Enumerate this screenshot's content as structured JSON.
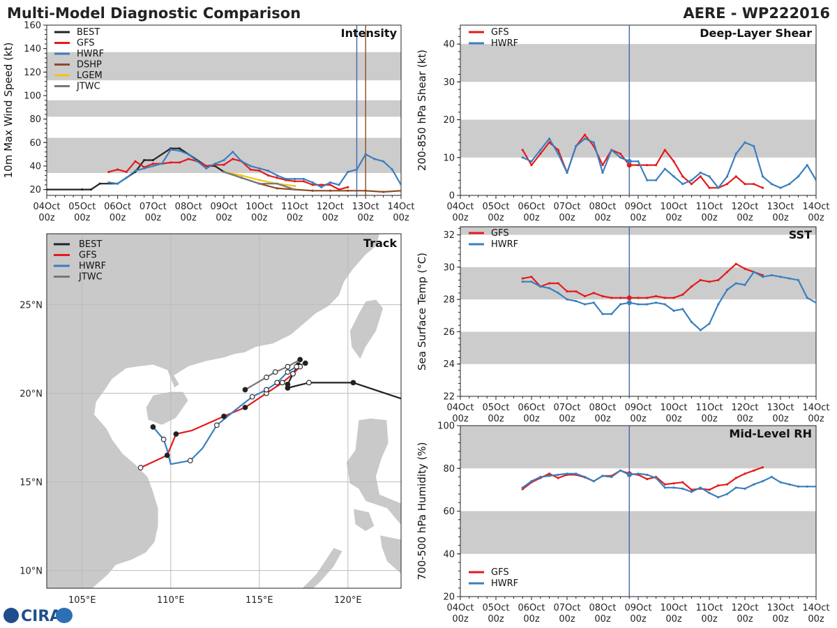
{
  "header": {
    "title": "Multi-Model Diagnostic Comparison",
    "storm": "AERE - WP222016"
  },
  "logo": {
    "text": "CIRA"
  },
  "colors": {
    "BEST": "#222222",
    "GFS": "#e31a1c",
    "HWRF": "#3a7fbf",
    "DSHP": "#8c4a23",
    "LGEM": "#f0c419",
    "JTWC": "#777777",
    "band": "#cccccc",
    "vline": "#4466aa",
    "vline2": "#8c4a23",
    "land": "#c9c9c9",
    "grid": "#bbbbbb"
  },
  "chart_data": [
    {
      "id": "intensity",
      "type": "line",
      "title": "Intensity",
      "ylabel": "10m Max Wind Speed (kt)",
      "x_ticks": [
        "04Oct",
        "05Oct",
        "06Oct",
        "07Oct",
        "08Oct",
        "09Oct",
        "10Oct",
        "11Oct",
        "12Oct",
        "13Oct",
        "14Oct"
      ],
      "x_ticks_sub": [
        "00z",
        "00z",
        "00z",
        "00z",
        "00z",
        "00z",
        "00z",
        "00z",
        "00z",
        "00z",
        "00z"
      ],
      "xlim": [
        0,
        10
      ],
      "ylim": [
        15,
        160
      ],
      "yticks": [
        20,
        40,
        60,
        80,
        100,
        120,
        140,
        160
      ],
      "bands": [
        [
          34,
          64
        ],
        [
          82,
          96
        ],
        [
          113,
          137
        ]
      ],
      "vlines": [
        {
          "x": 8.75,
          "color": "vline"
        },
        {
          "x": 9.0,
          "color": "vline2"
        }
      ],
      "legend": [
        "BEST",
        "GFS",
        "HWRF",
        "DSHP",
        "LGEM",
        "JTWC"
      ],
      "series": [
        {
          "name": "BEST",
          "x": [
            0,
            1,
            1.25,
            1.5,
            2,
            2.5,
            2.75,
            3,
            3.5,
            3.75,
            4,
            4.5,
            4.75,
            5
          ],
          "y": [
            20,
            20,
            20,
            25,
            25,
            35,
            45,
            45,
            55,
            55,
            50,
            40,
            40,
            35
          ]
        },
        {
          "name": "GFS",
          "x": [
            1.75,
            2,
            2.25,
            2.5,
            2.75,
            3,
            3.25,
            3.5,
            3.75,
            4,
            4.25,
            4.5,
            4.75,
            5,
            5.25,
            5.5,
            5.75,
            6,
            6.25,
            6.5,
            6.75,
            7,
            7.25,
            7.5,
            7.75,
            8,
            8.25,
            8.5
          ],
          "y": [
            35,
            37,
            35,
            44,
            39,
            42,
            42,
            43,
            43,
            46,
            44,
            40,
            41,
            41,
            46,
            44,
            37,
            36,
            32,
            30,
            28,
            27,
            27,
            24,
            24,
            24,
            20,
            22
          ]
        },
        {
          "name": "HWRF",
          "x": [
            1.75,
            2,
            2.25,
            2.5,
            2.75,
            3,
            3.25,
            3.5,
            3.75,
            4,
            4.25,
            4.5,
            4.75,
            5,
            5.25,
            5.5,
            5.75,
            6,
            6.25,
            6.5,
            6.75,
            7,
            7.25,
            7.5,
            7.75,
            8,
            8.25,
            8.5,
            8.75,
            9,
            9.25,
            9.5,
            9.75,
            10
          ],
          "y": [
            26,
            25,
            30,
            36,
            38,
            40,
            42,
            54,
            53,
            50,
            44,
            38,
            42,
            45,
            52,
            44,
            40,
            38,
            36,
            32,
            29,
            29,
            29,
            26,
            22,
            26,
            24,
            35,
            37,
            50,
            46,
            44,
            37,
            24
          ]
        },
        {
          "name": "DSHP",
          "x": [
            5,
            5.5,
            6,
            6.5,
            7,
            7.5,
            8,
            8.5,
            9,
            9.5,
            10
          ],
          "y": [
            35,
            30,
            25,
            21,
            20,
            19,
            19,
            19,
            19,
            18,
            19
          ]
        },
        {
          "name": "LGEM",
          "x": [
            5,
            5.5,
            6,
            6.5,
            7
          ],
          "y": [
            35,
            32,
            28,
            25,
            23
          ]
        },
        {
          "name": "JTWC",
          "x": [
            5,
            5.5,
            6,
            6.5,
            7
          ],
          "y": [
            35,
            30,
            25,
            25,
            20
          ]
        }
      ]
    },
    {
      "id": "shear",
      "type": "line",
      "title": "Deep-Layer Shear",
      "ylabel": "200-850 hPa Shear (kt)",
      "x_ticks": [
        "04Oct",
        "05Oct",
        "06Oct",
        "07Oct",
        "08Oct",
        "09Oct",
        "10Oct",
        "11Oct",
        "12Oct",
        "13Oct",
        "14Oct"
      ],
      "x_ticks_sub": [
        "00z",
        "00z",
        "00z",
        "00z",
        "00z",
        "00z",
        "00z",
        "00z",
        "00z",
        "00z",
        "00z"
      ],
      "xlim": [
        0,
        10
      ],
      "ylim": [
        0,
        45
      ],
      "yticks": [
        0,
        10,
        20,
        30,
        40
      ],
      "bands": [
        [
          10,
          20
        ],
        [
          30,
          40
        ]
      ],
      "vlines": [
        {
          "x": 4.75,
          "color": "vline"
        }
      ],
      "legend": [
        "GFS",
        "HWRF"
      ],
      "series": [
        {
          "name": "GFS",
          "x": [
            1.75,
            2,
            2.25,
            2.5,
            2.75,
            3,
            3.25,
            3.5,
            3.75,
            4,
            4.25,
            4.5,
            4.75,
            5,
            5.25,
            5.5,
            5.75,
            6,
            6.25,
            6.5,
            6.75,
            7,
            7.25,
            7.5,
            7.75,
            8,
            8.25,
            8.5
          ],
          "y": [
            12,
            8,
            11,
            14,
            12,
            6,
            13,
            16,
            13,
            8,
            12,
            11,
            8,
            8,
            8,
            8,
            12,
            9,
            5,
            3,
            5,
            2,
            2,
            3,
            5,
            3,
            3,
            2
          ]
        },
        {
          "name": "HWRF",
          "x": [
            1.75,
            2,
            2.25,
            2.5,
            2.75,
            3,
            3.25,
            3.5,
            3.75,
            4,
            4.25,
            4.5,
            4.75,
            5,
            5.25,
            5.5,
            5.75,
            6,
            6.25,
            6.5,
            6.75,
            7,
            7.25,
            7.5,
            7.75,
            8,
            8.25,
            8.5,
            8.75,
            9,
            9.25,
            9.5,
            9.75,
            10
          ],
          "y": [
            10,
            9,
            12,
            15,
            11,
            6,
            13,
            15,
            14,
            6,
            12,
            10,
            9,
            9,
            4,
            4,
            7,
            5,
            3,
            4,
            6,
            5,
            2,
            5,
            11,
            14,
            13,
            5,
            3,
            2,
            3,
            5,
            8,
            4
          ]
        }
      ]
    },
    {
      "id": "sst",
      "type": "line",
      "title": "SST",
      "ylabel": "Sea Surface Temp (°C)",
      "x_ticks": [
        "04Oct",
        "05Oct",
        "06Oct",
        "07Oct",
        "08Oct",
        "09Oct",
        "10Oct",
        "11Oct",
        "12Oct",
        "13Oct",
        "14Oct"
      ],
      "x_ticks_sub": [
        "00z",
        "00z",
        "00z",
        "00z",
        "00z",
        "00z",
        "00z",
        "00z",
        "00z",
        "00z",
        "00z"
      ],
      "xlim": [
        0,
        10
      ],
      "ylim": [
        22,
        32.5
      ],
      "yticks": [
        22,
        24,
        26,
        28,
        30,
        32
      ],
      "bands": [
        [
          24,
          26
        ],
        [
          28,
          30
        ],
        [
          32,
          32.5
        ]
      ],
      "vlines": [
        {
          "x": 4.75,
          "color": "vline"
        }
      ],
      "legend": [
        "GFS",
        "HWRF"
      ],
      "series": [
        {
          "name": "GFS",
          "x": [
            1.75,
            2,
            2.25,
            2.5,
            2.75,
            3,
            3.25,
            3.5,
            3.75,
            4,
            4.25,
            4.5,
            4.75,
            5,
            5.25,
            5.5,
            5.75,
            6,
            6.25,
            6.5,
            6.75,
            7,
            7.25,
            7.5,
            7.75,
            8,
            8.25,
            8.5
          ],
          "y": [
            29.3,
            29.4,
            28.8,
            29.0,
            29.0,
            28.5,
            28.5,
            28.2,
            28.4,
            28.2,
            28.1,
            28.1,
            28.1,
            28.1,
            28.1,
            28.2,
            28.1,
            28.1,
            28.3,
            28.8,
            29.2,
            29.1,
            29.2,
            29.7,
            30.2,
            29.9,
            29.7,
            29.5
          ]
        },
        {
          "name": "HWRF",
          "x": [
            1.75,
            2,
            2.25,
            2.5,
            2.75,
            3,
            3.25,
            3.5,
            3.75,
            4,
            4.25,
            4.5,
            4.75,
            5,
            5.25,
            5.5,
            5.75,
            6,
            6.25,
            6.5,
            6.75,
            7,
            7.25,
            7.5,
            7.75,
            8,
            8.25,
            8.5,
            8.75,
            9,
            9.25,
            9.5,
            9.75,
            10
          ],
          "y": [
            29.1,
            29.1,
            28.8,
            28.7,
            28.4,
            28.0,
            27.9,
            27.7,
            27.8,
            27.1,
            27.1,
            27.7,
            27.8,
            27.7,
            27.7,
            27.8,
            27.7,
            27.3,
            27.4,
            26.6,
            26.1,
            26.5,
            27.7,
            28.6,
            29.0,
            28.9,
            29.7,
            29.4,
            29.5,
            29.4,
            29.3,
            29.2,
            28.1,
            27.8
          ]
        }
      ]
    },
    {
      "id": "rh",
      "type": "line",
      "title": "Mid-Level RH",
      "ylabel": "700-500 hPa Humidity (%)",
      "x_ticks": [
        "04Oct",
        "05Oct",
        "06Oct",
        "07Oct",
        "08Oct",
        "09Oct",
        "10Oct",
        "11Oct",
        "12Oct",
        "13Oct",
        "14Oct"
      ],
      "x_ticks_sub": [
        "00z",
        "00z",
        "00z",
        "00z",
        "00z",
        "00z",
        "00z",
        "00z",
        "00z",
        "00z",
        "00z"
      ],
      "xlim": [
        0,
        10
      ],
      "ylim": [
        20,
        100
      ],
      "yticks": [
        20,
        40,
        60,
        80,
        100
      ],
      "bands": [
        [
          40,
          60
        ],
        [
          80,
          100
        ]
      ],
      "vlines": [
        {
          "x": 4.75,
          "color": "vline"
        }
      ],
      "legend": [
        "GFS",
        "HWRF"
      ],
      "series": [
        {
          "name": "GFS",
          "x": [
            1.75,
            2,
            2.25,
            2.5,
            2.75,
            3,
            3.25,
            3.5,
            3.75,
            4,
            4.25,
            4.5,
            4.75,
            5,
            5.25,
            5.5,
            5.75,
            6,
            6.25,
            6.5,
            6.75,
            7,
            7.25,
            7.5,
            7.75,
            8,
            8.25,
            8.5
          ],
          "y": [
            70.3,
            73.5,
            75.5,
            77.5,
            75.5,
            77.0,
            77.0,
            75.8,
            74.0,
            76.5,
            76.5,
            79.0,
            77.5,
            77.0,
            75.0,
            76.0,
            72.5,
            73.0,
            73.5,
            70.0,
            70.5,
            70.0,
            72.0,
            72.5,
            75.5,
            77.5,
            79.0,
            80.5
          ]
        },
        {
          "name": "HWRF",
          "x": [
            1.75,
            2,
            2.25,
            2.5,
            2.75,
            3,
            3.25,
            3.5,
            3.75,
            4,
            4.25,
            4.5,
            4.75,
            5,
            5.25,
            5.5,
            5.75,
            6,
            6.25,
            6.5,
            6.75,
            7,
            7.25,
            7.5,
            7.75,
            8,
            8.25,
            8.5,
            8.75,
            9,
            9.25,
            9.5,
            9.75,
            10
          ],
          "y": [
            71.0,
            74.0,
            76.0,
            76.5,
            77.0,
            77.5,
            77.5,
            76.0,
            74.0,
            76.5,
            76.0,
            79.0,
            77.0,
            77.5,
            77.0,
            75.5,
            71.0,
            71.0,
            70.5,
            69.0,
            71.0,
            68.5,
            66.5,
            68.0,
            71.0,
            70.5,
            72.5,
            74.0,
            76.0,
            73.5,
            72.5,
            71.5,
            71.5,
            71.5
          ]
        }
      ]
    },
    {
      "id": "track",
      "type": "scatter",
      "title": "Track",
      "x_ticks": [
        "105°E",
        "110°E",
        "115°E",
        "120°E"
      ],
      "y_ticks": [
        "10°N",
        "15°N",
        "20°N",
        "25°N"
      ],
      "xvals": [
        105,
        110,
        115,
        120
      ],
      "yvals": [
        10,
        15,
        20,
        25
      ],
      "xlim": [
        103.0,
        123.0
      ],
      "ylim": [
        9.0,
        29.0
      ],
      "legend": [
        "BEST",
        "GFS",
        "HWRF",
        "JTWC"
      ],
      "series": [
        {
          "name": "BEST",
          "lon": [
            123,
            120.3,
            117.8,
            116.6,
            116.6,
            116.9,
            117.2
          ],
          "lat": [
            19.7,
            20.6,
            20.6,
            20.3,
            20.5,
            21.1,
            21.6
          ],
          "markers": [
            false,
            true,
            true,
            true,
            true,
            true,
            true
          ],
          "hollow": [
            false,
            false,
            true,
            false,
            false,
            false,
            false
          ]
        },
        {
          "name": "GFS",
          "lon": [
            117.3,
            116.9,
            116.3,
            115.4,
            114.2,
            113.0,
            111.2,
            110.3,
            109.8,
            108.3
          ],
          "lat": [
            21.5,
            21.1,
            20.6,
            20.0,
            19.2,
            18.7,
            17.9,
            17.7,
            16.5,
            15.8
          ],
          "markers": [
            true,
            true,
            true,
            true,
            true,
            true,
            false,
            true,
            true,
            true
          ],
          "hollow": [
            true,
            true,
            true,
            true,
            false,
            false,
            false,
            false,
            false,
            true
          ]
        },
        {
          "name": "HWRF",
          "lon": [
            117.6,
            117.1,
            116.6,
            116.0,
            115.4,
            114.6,
            113.7,
            112.6,
            111.8,
            111.1,
            110.0,
            109.8,
            109.6,
            109.0
          ],
          "lat": [
            21.7,
            21.5,
            21.2,
            20.6,
            20.2,
            19.8,
            19.1,
            18.2,
            16.9,
            16.2,
            16.0,
            16.8,
            17.4,
            18.1
          ],
          "markers": [
            true,
            true,
            true,
            true,
            true,
            true,
            false,
            true,
            false,
            true,
            false,
            false,
            true,
            true
          ],
          "hollow": [
            false,
            true,
            true,
            true,
            true,
            true,
            false,
            true,
            false,
            true,
            false,
            false,
            true,
            false
          ]
        },
        {
          "name": "JTWC",
          "lon": [
            117.3,
            116.6,
            115.9,
            115.4,
            114.2
          ],
          "lat": [
            21.9,
            21.5,
            21.2,
            20.9,
            20.2
          ],
          "markers": [
            true,
            true,
            true,
            true,
            true
          ],
          "hollow": [
            false,
            true,
            true,
            true,
            false
          ]
        }
      ]
    }
  ]
}
